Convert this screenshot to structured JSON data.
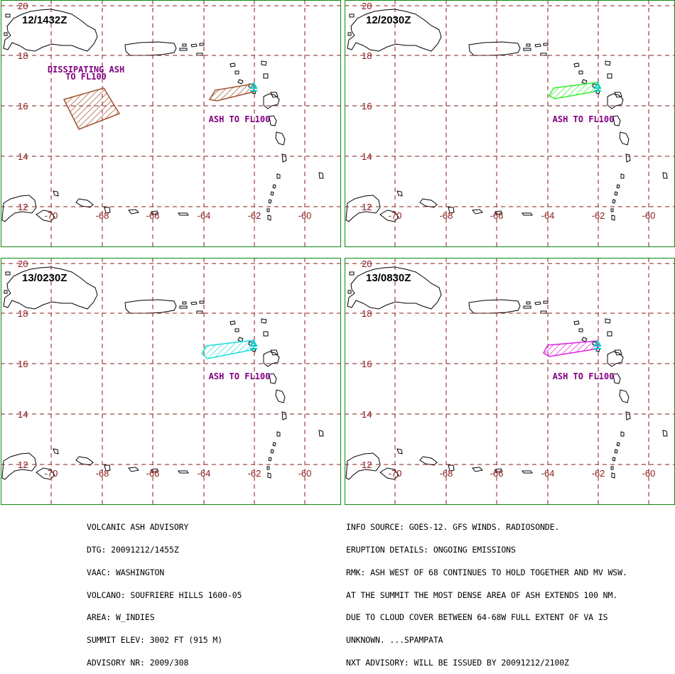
{
  "map": {
    "lat_labels": [
      "20",
      "18",
      "16",
      "14",
      "12"
    ],
    "lon_labels": [
      "-70",
      "-68",
      "-66",
      "-64",
      "-62",
      "-60"
    ],
    "colors": {
      "frame": "#118811",
      "grid": "#8b1a1a",
      "coast": "#000000",
      "label": "#800080"
    }
  },
  "panels": [
    {
      "time": "12/1432Z",
      "ash_color": "#a0522d",
      "labels": [
        {
          "text": "DISSIPATING ASH"
        },
        {
          "text": "TO FL100"
        },
        {
          "text": "ASH TO FL100"
        }
      ]
    },
    {
      "time": "12/2030Z",
      "ash_color": "#33ee33",
      "labels": [
        {
          "text": "ASH TO FL100"
        }
      ]
    },
    {
      "time": "13/0230Z",
      "ash_color": "#22dddd",
      "labels": [
        {
          "text": "ASH TO FL100"
        }
      ]
    },
    {
      "time": "13/0830Z",
      "ash_color": "#dd22dd",
      "labels": [
        {
          "text": "ASH TO FL100"
        }
      ]
    }
  ],
  "advisory_left": [
    "VOLCANIC ASH ADVISORY",
    "DTG: 20091212/1455Z",
    "VAAC: WASHINGTON",
    "VOLCANO: SOUFRIERE HILLS 1600-05",
    "AREA: W_INDIES",
    "SUMMIT ELEV: 3002 FT (915 M)",
    "ADVISORY NR: 2009/308"
  ],
  "advisory_right": [
    "INFO SOURCE: GOES-12. GFS WINDS. RADIOSONDE.",
    "ERUPTION DETAILS: ONGOING EMISSIONS",
    "RMK: ASH WEST OF 68 CONTINUES TO HOLD TOGETHER AND MV WSW.",
    "AT THE SUMMIT THE MOST DENSE AREA OF ASH EXTENDS 100 NM.",
    "DUE TO CLOUD COVER BETWEEN 64-68W FULL EXTENT OF VA IS",
    "UNKNOWN. ...SPAMPATA",
    "NXT ADVISORY: WILL BE ISSUED BY 20091212/2100Z"
  ]
}
